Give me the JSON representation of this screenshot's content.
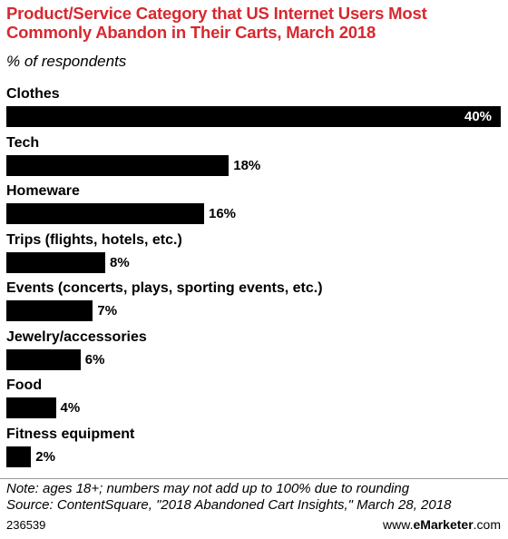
{
  "header": {
    "title": "Product/Service Category that US Internet Users Most Commonly Abandon in Their Carts, March 2018",
    "subtitle": "% of respondents"
  },
  "chart_data": {
    "type": "bar",
    "orientation": "horizontal",
    "categories": [
      "Clothes",
      "Tech",
      "Homeware",
      "Trips (flights, hotels, etc.)",
      "Events (concerts, plays, sporting events, etc.)",
      "Jewelry/accessories",
      "Food",
      "Fitness equipment"
    ],
    "values": [
      40,
      18,
      16,
      8,
      7,
      6,
      4,
      2
    ],
    "value_labels": [
      "40%",
      "18%",
      "16%",
      "8%",
      "7%",
      "6%",
      "4%",
      "2%"
    ],
    "xlim": [
      0,
      40
    ],
    "grid": false,
    "bar_color": "#000000",
    "title_color": "#d7282f"
  },
  "footer": {
    "note": "Note: ages 18+; numbers may not add up to 100% due to rounding",
    "source": "Source: ContentSquare, \"2018 Abandoned Cart Insights,\" March 28, 2018",
    "chart_id": "236539",
    "brand_prefix": "www.",
    "brand_name": "eMarketer",
    "brand_suffix": ".com"
  }
}
